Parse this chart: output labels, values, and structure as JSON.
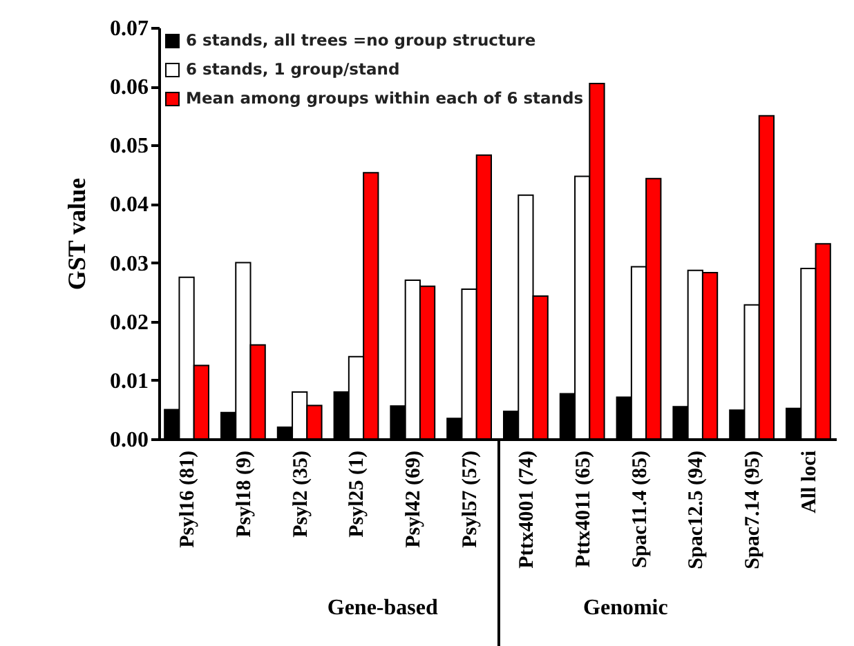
{
  "chart_data": {
    "type": "bar",
    "ylabel": "GST value",
    "categories": [
      "Psyl16 (81)",
      "Psyl18 (9)",
      "Psyl2 (35)",
      "Psyl25 (1)",
      "Psyl42 (69)",
      "Psyl57 (57)",
      "Pttx4001 (74)",
      "Pttx4011 (65)",
      "Spac11.4 (85)",
      "Spac12.5 (94)",
      "Spac7.14 (95)",
      "All loci"
    ],
    "series": [
      {
        "name": "6 stands, all trees =no group structure",
        "color": "#000000",
        "values": [
          0.005,
          0.0045,
          0.002,
          0.008,
          0.0056,
          0.0035,
          0.0047,
          0.0077,
          0.0071,
          0.0055,
          0.0049,
          0.0052
        ]
      },
      {
        "name": "6 stands, 1 group/stand",
        "color": "#ffffff",
        "values": [
          0.0275,
          0.03,
          0.008,
          0.014,
          0.027,
          0.0255,
          0.0415,
          0.0447,
          0.0293,
          0.0287,
          0.0228,
          0.029
        ]
      },
      {
        "name": "Mean among groups within each of 6 stands",
        "color": "#ff0000",
        "values": [
          0.0125,
          0.016,
          0.0057,
          0.0453,
          0.026,
          0.0483,
          0.0243,
          0.0605,
          0.0443,
          0.0283,
          0.055,
          0.0332
        ]
      }
    ],
    "ylim": [
      0,
      0.07
    ],
    "yticks": [
      {
        "value": 0,
        "label": "0.00"
      },
      {
        "value": 0.01,
        "label": "0.01"
      },
      {
        "value": 0.02,
        "label": "0.02"
      },
      {
        "value": 0.03,
        "label": "0.03"
      },
      {
        "value": 0.04,
        "label": "0.04"
      },
      {
        "value": 0.05,
        "label": "0.05"
      },
      {
        "value": 0.06,
        "label": "0.06"
      },
      {
        "value": 0.07,
        "label": "0.07"
      }
    ],
    "annotations": [
      "Gene-based",
      "Genomic"
    ],
    "legend": "top left",
    "grid": false
  }
}
